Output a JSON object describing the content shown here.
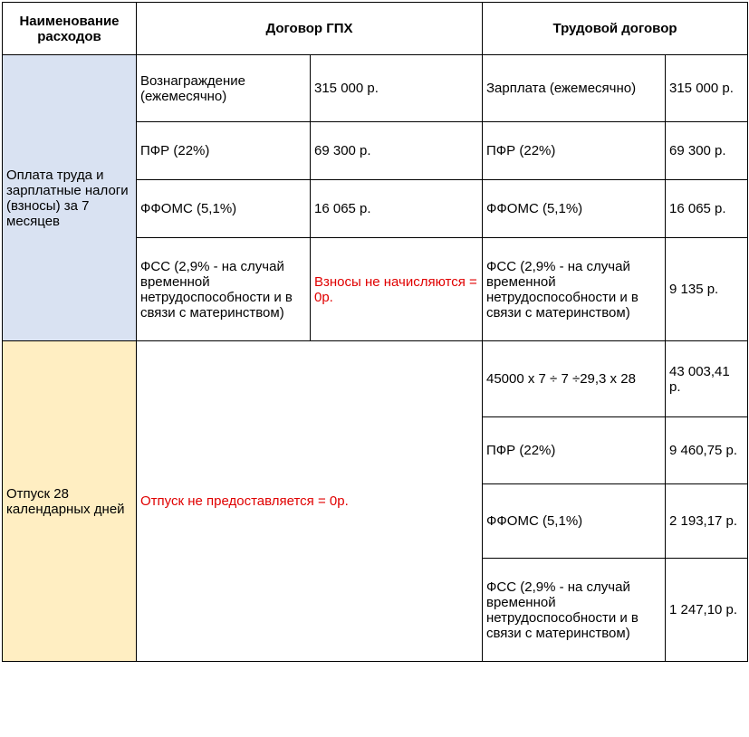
{
  "headers": {
    "col1": "Наименование расходов",
    "col2": "Договор ГПХ",
    "col3": "Трудовой договор"
  },
  "section1": {
    "label": "Оплата труда и зарплатные налоги (взносы) за 7 месяцев",
    "bg": "#d9e2f2",
    "rows": [
      {
        "gpx_label": "Вознаграждение (ежемесячно)",
        "gpx_val": "315 000 р.",
        "td_label": "Зарплата (ежемесячно)",
        "td_val": "315 000 р."
      },
      {
        "gpx_label": "ПФР (22%)",
        "gpx_val": "69 300 р.",
        "td_label": "ПФР (22%)",
        "td_val": "69 300 р."
      },
      {
        "gpx_label": "ФФОМС (5,1%)",
        "gpx_val": "16 065 р.",
        "td_label": "ФФОМС (5,1%)",
        "td_val": "16 065 р."
      },
      {
        "gpx_label": "ФСС (2,9% - на случай временной нетрудоспособности и в связи с материнством)",
        "gpx_val": "Взносы не начисляются = 0р.",
        "gpx_val_red": true,
        "td_label": "ФСС (2,9% - на случай временной нетрудоспособности и в связи с материнством)",
        "td_val": "9 135 р."
      }
    ]
  },
  "section2": {
    "label": "Отпуск 28 календарных дней",
    "bg": "#ffeec2",
    "gpx_merged": "Отпуск не предоставляется = 0р.",
    "gpx_merged_red": true,
    "rows": [
      {
        "td_label": "45000 х 7 ÷ 7 ÷29,3 х 28",
        "td_val": "43 003,41 р."
      },
      {
        "td_label": "ПФР (22%)",
        "td_val": "9 460,75 р."
      },
      {
        "td_label": "ФФОМС (5,1%)",
        "td_val": "2 193,17  р."
      },
      {
        "td_label": "ФСС (2,9% - на случай временной нетрудоспособности и в связи с материнством)",
        "td_val": "1 247,10 р."
      }
    ]
  },
  "row_heights": {
    "header": 58,
    "s1r0": 74,
    "s1r1": 64,
    "s1r2": 64,
    "s1r3": 114,
    "s2r0": 84,
    "s2r1": 74,
    "s2r2": 82,
    "s2r3": 114
  }
}
